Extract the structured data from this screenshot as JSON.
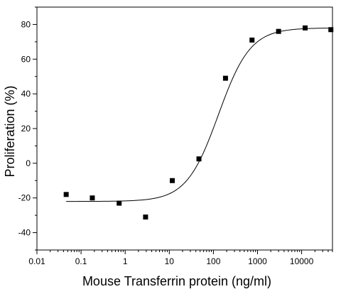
{
  "chart_data": {
    "type": "scatter",
    "title": "",
    "xlabel": "Mouse Transferrin protein (ng/ml)",
    "ylabel": "Proliferation (%)",
    "x_scale": "log",
    "xlim": [
      0.01,
      50000
    ],
    "ylim": [
      -50,
      90
    ],
    "x_ticks": [
      {
        "value": 0.01,
        "label": "0.01"
      },
      {
        "value": 0.1,
        "label": "0.1"
      },
      {
        "value": 1,
        "label": "1"
      },
      {
        "value": 10,
        "label": "10"
      },
      {
        "value": 100,
        "label": "100"
      },
      {
        "value": 1000,
        "label": "1000"
      },
      {
        "value": 10000,
        "label": "10000"
      }
    ],
    "y_ticks": [
      {
        "value": -40,
        "label": "-40"
      },
      {
        "value": -20,
        "label": "-20"
      },
      {
        "value": 0,
        "label": "0"
      },
      {
        "value": 20,
        "label": "20"
      },
      {
        "value": 40,
        "label": "40"
      },
      {
        "value": 60,
        "label": "60"
      },
      {
        "value": 80,
        "label": "80"
      }
    ],
    "grid": false,
    "series": [
      {
        "marker": "square",
        "color": "#000000",
        "points": [
          {
            "x": 0.046,
            "y": -18
          },
          {
            "x": 0.18,
            "y": -20
          },
          {
            "x": 0.73,
            "y": -23
          },
          {
            "x": 2.9,
            "y": -31
          },
          {
            "x": 11.7,
            "y": -10
          },
          {
            "x": 47,
            "y": 2.5
          },
          {
            "x": 188,
            "y": 49
          },
          {
            "x": 750,
            "y": 71
          },
          {
            "x": 3000,
            "y": 76
          },
          {
            "x": 12000,
            "y": 78
          },
          {
            "x": 46000,
            "y": 77
          }
        ]
      }
    ],
    "fit_curve": {
      "model": "4PL",
      "bottom": -22,
      "top": 78,
      "ec50": 130,
      "hill": 1.2,
      "color": "#000000"
    }
  }
}
